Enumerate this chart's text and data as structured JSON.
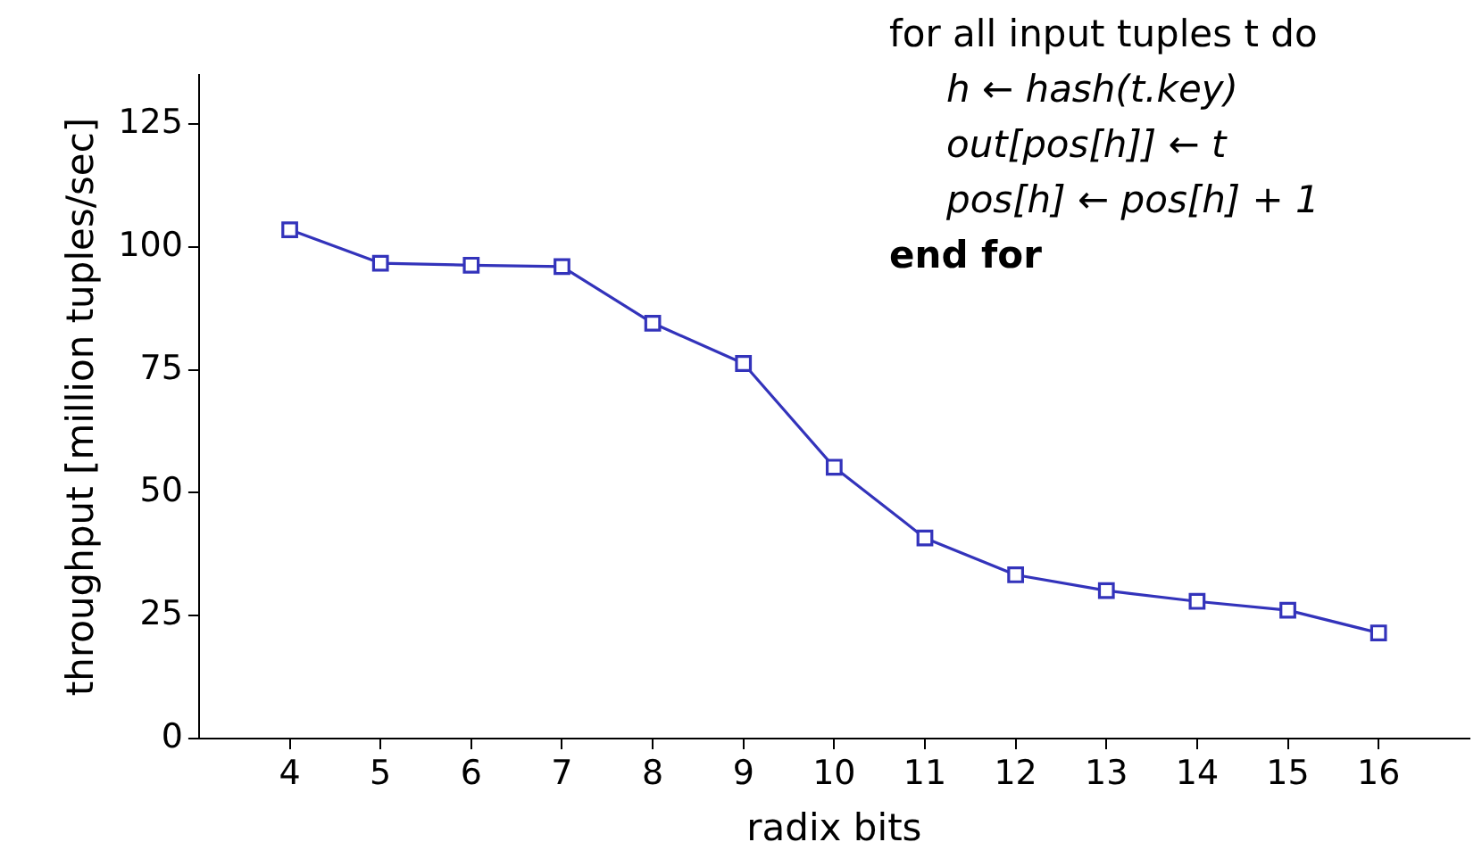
{
  "chart_data": {
    "type": "line",
    "xlabel": "radix bits",
    "ylabel": "throughput [million tuples/sec]",
    "x": [
      4,
      5,
      6,
      7,
      8,
      9,
      10,
      11,
      12,
      13,
      14,
      15,
      16
    ],
    "series": [
      {
        "color": "#3333bb",
        "values": [
          103.5,
          96.7,
          96.3,
          96.0,
          84.5,
          76.3,
          55.2,
          40.8,
          33.3,
          30.1,
          27.9,
          26.1,
          21.5
        ]
      }
    ],
    "xlim": [
      3,
      17
    ],
    "xticks": [
      4,
      5,
      6,
      7,
      8,
      9,
      10,
      11,
      12,
      13,
      14,
      15,
      16
    ],
    "ylim": [
      0,
      135
    ],
    "yticks": [
      0,
      25,
      50,
      75,
      100,
      125
    ],
    "grid": false,
    "legend": false,
    "marker": "square",
    "line_style": "solid",
    "annotations": [
      "for all input tuples t do",
      "h ← hash(t.key)",
      "out[pos[h]] ← t",
      "pos[h] ← pos[h] + 1",
      "end for"
    ]
  }
}
